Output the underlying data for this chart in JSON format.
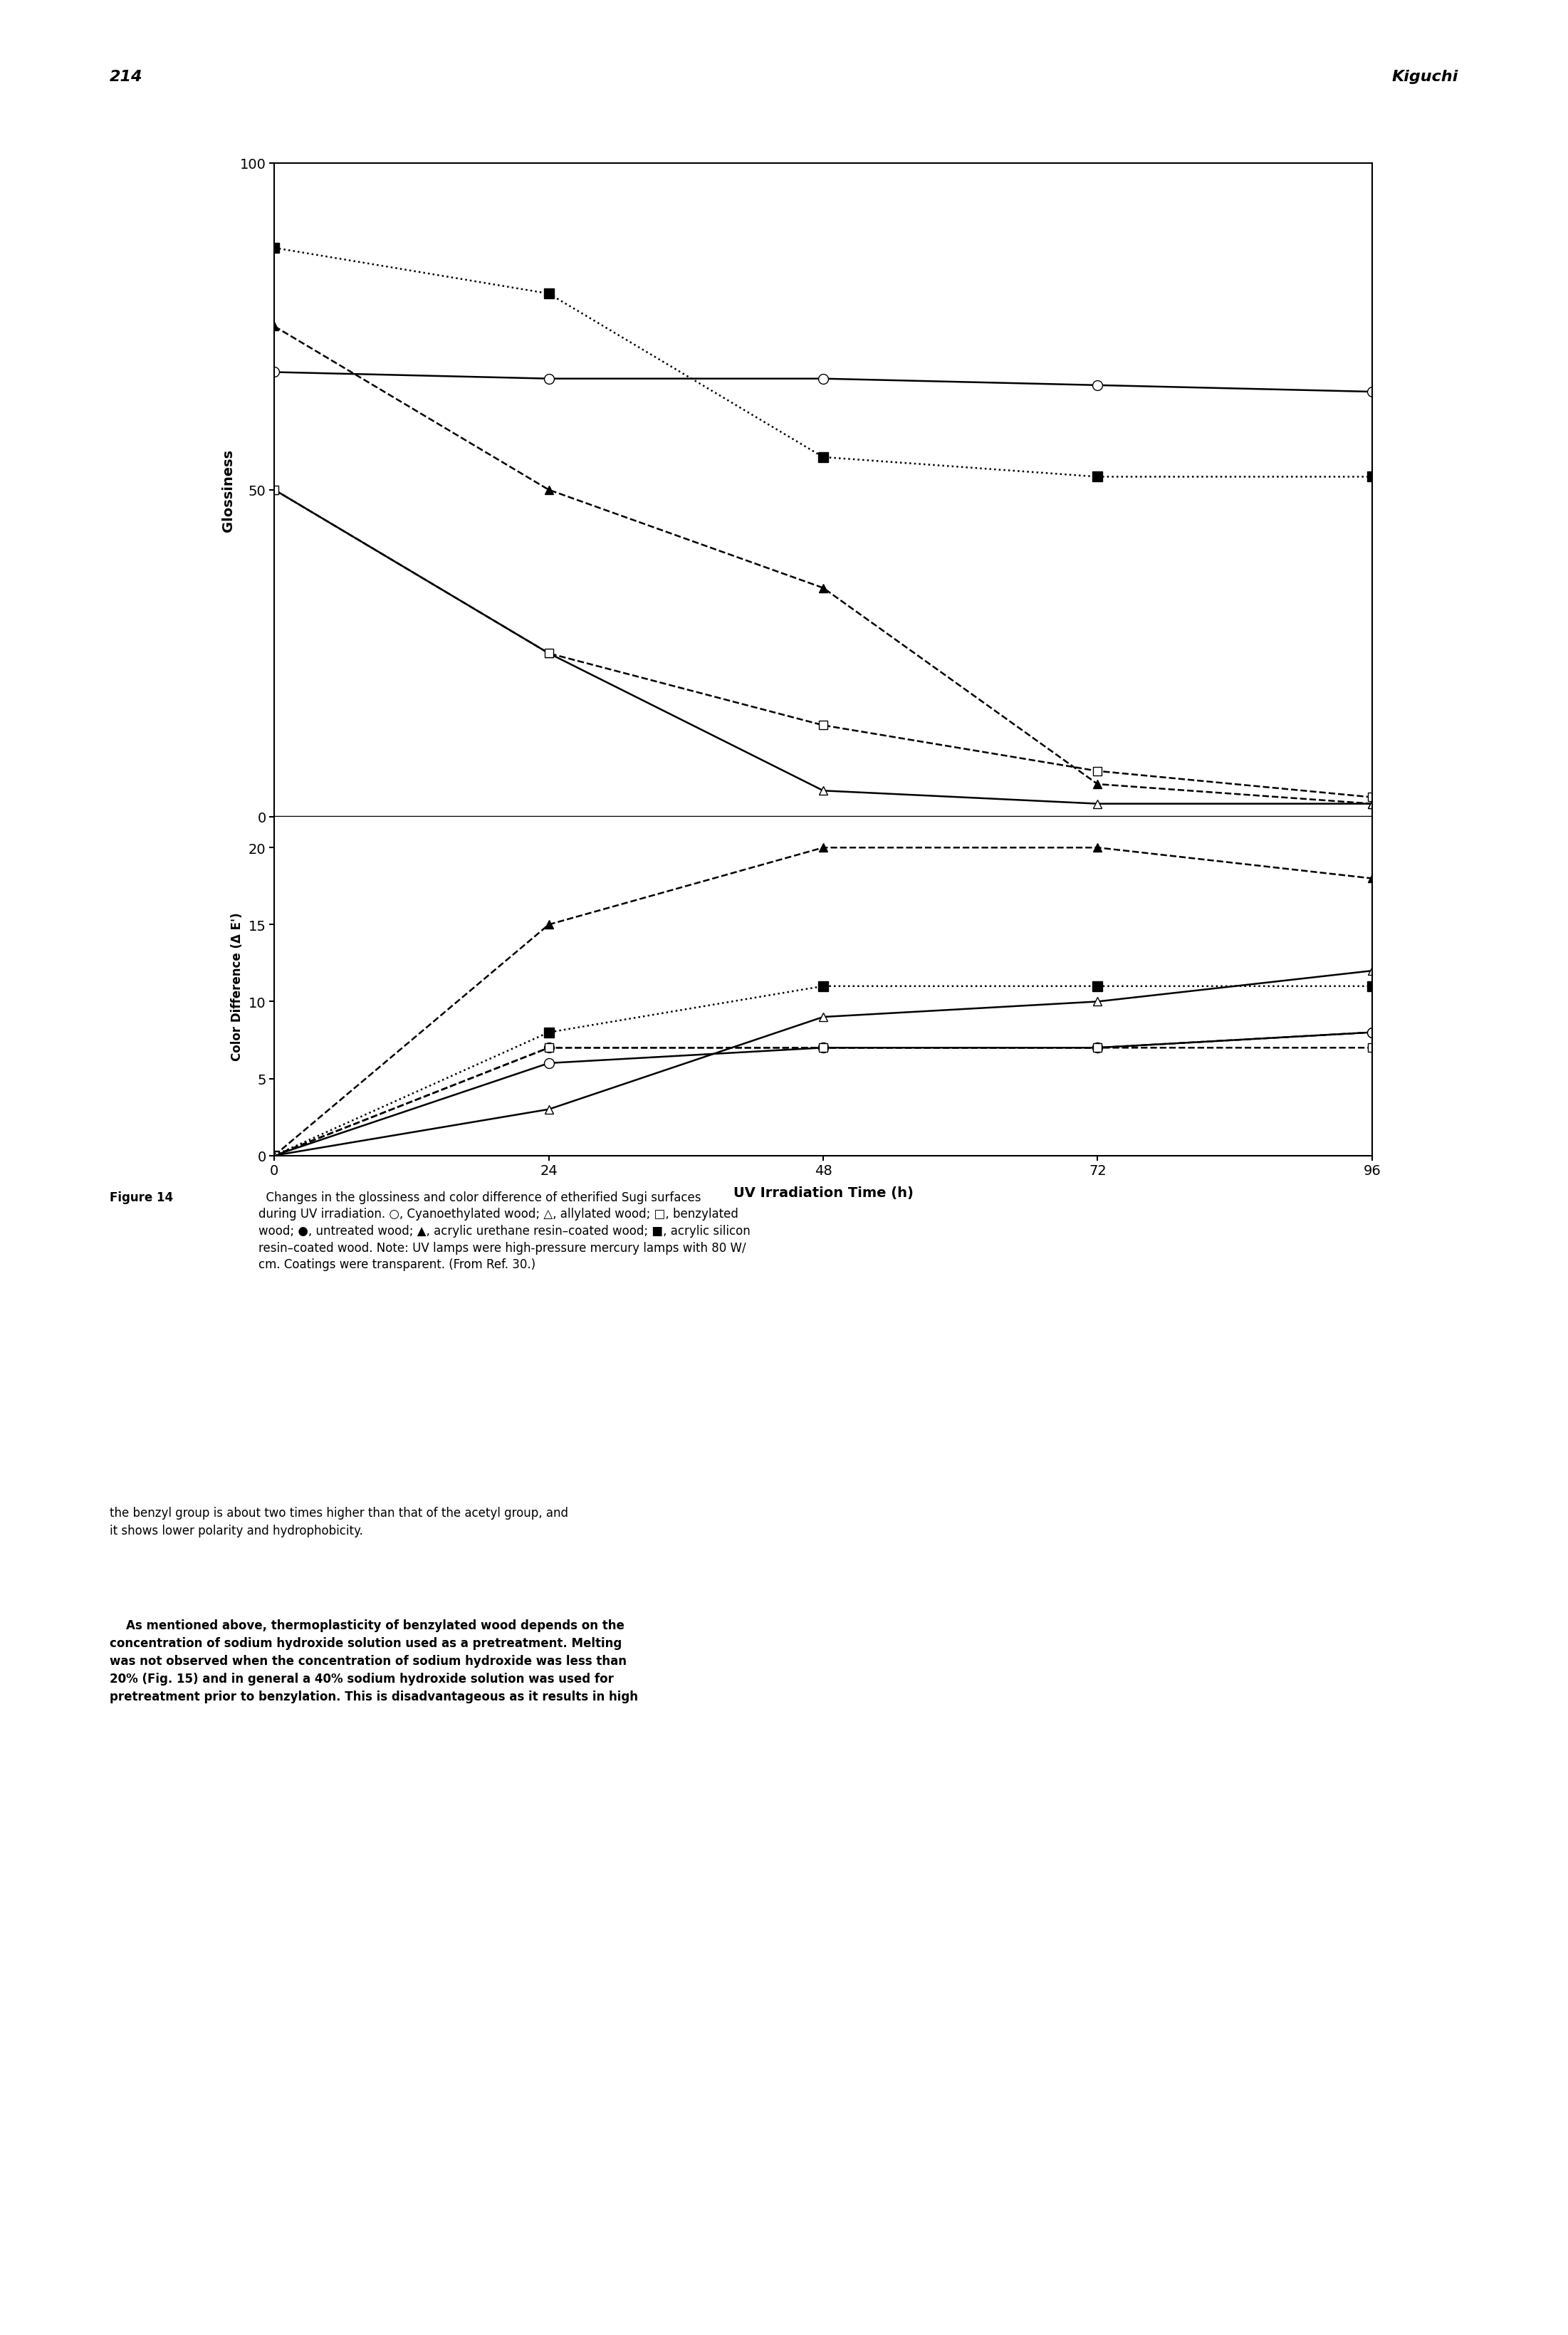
{
  "x_values": [
    0,
    24,
    48,
    72,
    96
  ],
  "xlabel": "UV Irradiation Time (h)",
  "ylabel_top": "Glossiness",
  "ylabel_bottom": "Color Difference (Δ E')",
  "gloss_cyanoethylated": [
    68,
    67,
    67,
    66,
    65
  ],
  "gloss_allylated": [
    50,
    25,
    4,
    2,
    2
  ],
  "gloss_benzylated": [
    50,
    25,
    14,
    7,
    3
  ],
  "gloss_acrylic_urethane": [
    75,
    50,
    35,
    5,
    2
  ],
  "gloss_acrylic_silicon": [
    87,
    80,
    55,
    52,
    52
  ],
  "cd_cyanoethylated": [
    0,
    6,
    7,
    7,
    8
  ],
  "cd_allylated": [
    0,
    3,
    9,
    10,
    12
  ],
  "cd_benzylated": [
    0,
    7,
    7,
    7,
    7
  ],
  "cd_untreated": [
    0,
    7,
    7,
    7,
    8
  ],
  "cd_acrylic_urethane": [
    0,
    15,
    20,
    20,
    18
  ],
  "cd_acrylic_silicon": [
    0,
    8,
    11,
    11,
    11
  ],
  "page_number": "214",
  "page_author": "Kiguchi",
  "caption_bold": "Figure 14",
  "caption_normal": "  Changes in the glossiness and color difference of etherified Sugi surfaces\nduring UV irradiation. ○, Cyanoethylated wood; △, allylated wood; □, benzylated\nwood; ●, untreated wood; ▲, acrylic urethane resin–coated wood; ■, acrylic silicon\nresin–coated wood. Note: UV lamps were high-pressure mercury lamps with 80 W/\ncm. Coatings were transparent. (From Ref. 30.)",
  "body_line1": "the benzyl group is about two times higher than that of the acetyl group, and",
  "body_line2": "it shows lower polarity and hydrophobicity.",
  "body_line3": "    As mentioned above, thermoplasticity of benzylated wood depends on the",
  "body_line4": "concentration of sodium hydroxide solution used as a pretreatment. Melting",
  "body_line5": "was not observed when the concentration of sodium hydroxide was less than",
  "body_line6": "20% (Fig. 15) and in general a 40% sodium hydroxide solution was used for",
  "body_line7": "pretreatment prior to benzylation. This is disadvantageous as it results in high"
}
